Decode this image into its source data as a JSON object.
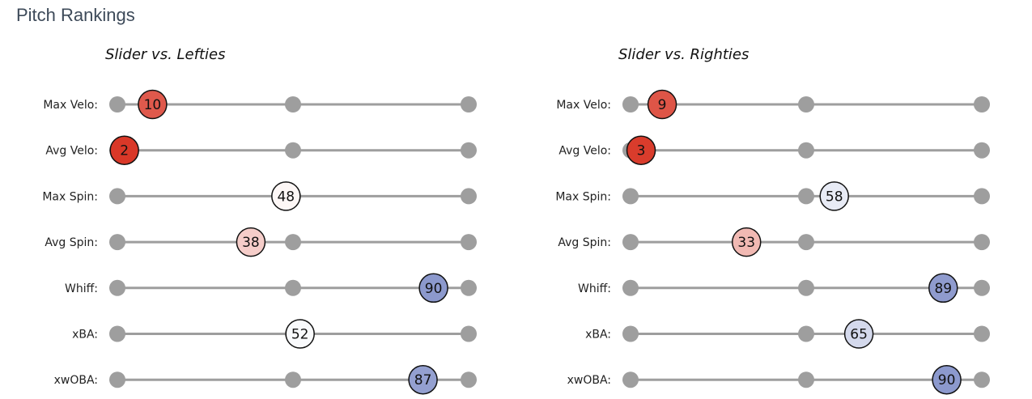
{
  "page_title": "Pitch Rankings",
  "colors": {
    "track": "#9e9e9e",
    "node": "#9e9e9e",
    "scale_low": "#d7301f",
    "scale_mid": "#ffffff",
    "scale_high": "#6f7fc0"
  },
  "chart_data": [
    {
      "type": "scatter",
      "title": "Slider vs. Lefties",
      "scale_ticks": [
        0,
        50,
        100
      ],
      "xlim": [
        0,
        100
      ],
      "categories": [
        "Max Velo:",
        "Avg Velo:",
        "Max Spin:",
        "Avg Spin:",
        "Whiff:",
        "xBA:",
        "xwOBA:"
      ],
      "values": [
        10,
        2,
        48,
        38,
        90,
        52,
        87
      ]
    },
    {
      "type": "scatter",
      "title": "Slider vs. Righties",
      "scale_ticks": [
        0,
        50,
        100
      ],
      "xlim": [
        0,
        100
      ],
      "categories": [
        "Max Velo:",
        "Avg Velo:",
        "Max Spin:",
        "Avg Spin:",
        "Whiff:",
        "xBA:",
        "xwOBA:"
      ],
      "values": [
        9,
        3,
        58,
        33,
        89,
        65,
        90
      ]
    }
  ]
}
